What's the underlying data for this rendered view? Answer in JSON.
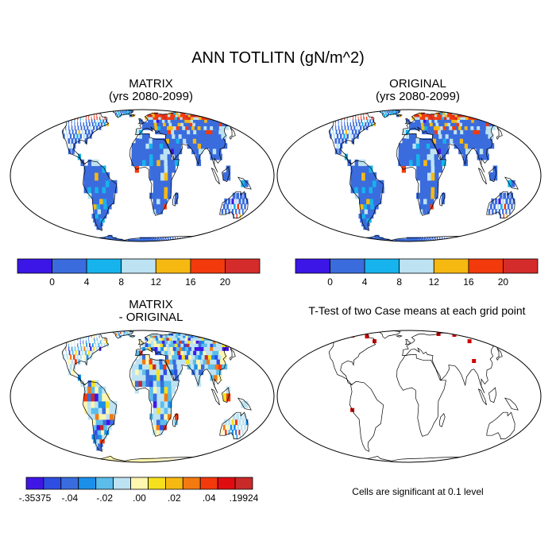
{
  "main_title": "ANN TOTLITN (gN/m^2)",
  "panels": {
    "matrix": {
      "title1": "MATRIX",
      "title2": "(yrs 2080-2099)"
    },
    "original": {
      "title1": "ORIGINAL",
      "title2": "(yrs 2080-2099)"
    },
    "diff": {
      "title1": "MATRIX",
      "title2": "- ORIGINAL"
    },
    "ttest": {
      "title": "T-Test of two Case means at each grid point",
      "note": "Cells are significant at 0.1 level"
    }
  },
  "colorbars": {
    "top": {
      "colors": [
        "#3b16e6",
        "#3a6cdd",
        "#16b3ec",
        "#bde3f2",
        "#f6b912",
        "#f23a0c",
        "#d42c2a"
      ],
      "labels": [
        "0",
        "4",
        "8",
        "12",
        "16",
        "20"
      ]
    },
    "diff": {
      "colors": [
        "#4016e6",
        "#2e4ee2",
        "#3a6cdd",
        "#1a90ea",
        "#5cbdeb",
        "#bde3f2",
        "#fff6b0",
        "#f6e01e",
        "#f6b912",
        "#f27a10",
        "#f23a0c",
        "#e00d10",
        "#c82a2a"
      ],
      "labels": [
        "-.35375",
        "-.04",
        "-.02",
        ".00",
        ".02",
        ".04",
        ".19924"
      ],
      "label_slots": [
        0,
        2,
        4,
        6,
        8,
        10,
        12
      ]
    }
  },
  "map_colors": {
    "ocean": "#ffffff",
    "land_base_top": "#3a6cdd",
    "land_base_diff": "#bde3f2",
    "antarctica_diff": "#fff6b0",
    "significant": "#d00000"
  }
}
